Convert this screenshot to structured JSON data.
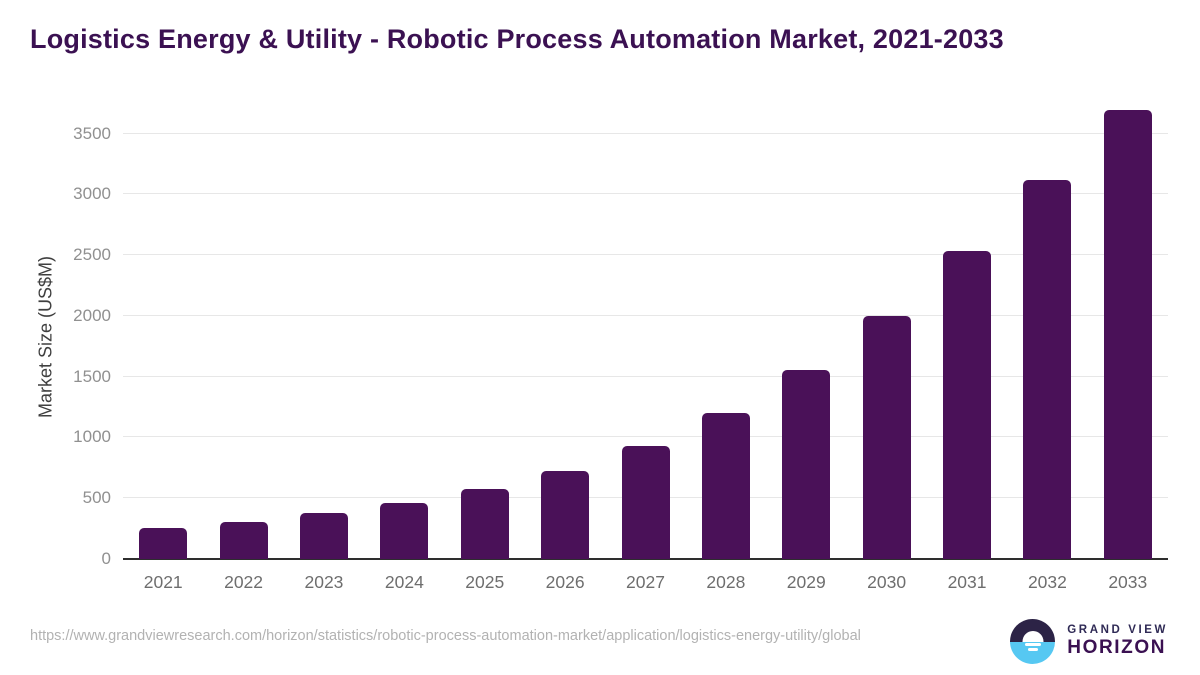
{
  "title": "Logistics Energy & Utility - Robotic Process Automation Market, 2021-2033",
  "chart_data": {
    "type": "bar",
    "title": "Logistics Energy & Utility - Robotic Process Automation Market, 2021-2033",
    "xlabel": "",
    "ylabel": "Market Size (US$M)",
    "categories": [
      "2021",
      "2022",
      "2023",
      "2024",
      "2025",
      "2026",
      "2027",
      "2028",
      "2029",
      "2030",
      "2031",
      "2032",
      "2033"
    ],
    "values": [
      255,
      305,
      378,
      460,
      578,
      725,
      930,
      1200,
      1555,
      2000,
      2535,
      3115,
      3690
    ],
    "ylim": [
      0,
      3735
    ],
    "yticks": [
      0,
      500,
      1000,
      1500,
      2000,
      2500,
      3000,
      3500
    ],
    "grid": "horizontal",
    "legend_position": "none",
    "bar_color": "#4a1158"
  },
  "footer": {
    "source_url": "https://www.grandviewresearch.com/horizon/statistics/robotic-process-automation-market/application/logistics-energy-utility/global",
    "logo": {
      "line1": "GRAND VIEW",
      "line2": "HORIZON"
    }
  },
  "colors": {
    "title_text": "#3b1152",
    "bar": "#4a1158",
    "gridline": "#e7e7e7",
    "axis_line": "#2e2e2e",
    "y_tick_text": "#909090",
    "x_tick_text": "#6e6e6e",
    "y_axis_label_text": "#3f3f3f",
    "source_url_text": "#b2b2b2",
    "logo_navy": "#2c2346",
    "logo_blue": "#56c8f2",
    "logo_purple": "#3b1152"
  }
}
